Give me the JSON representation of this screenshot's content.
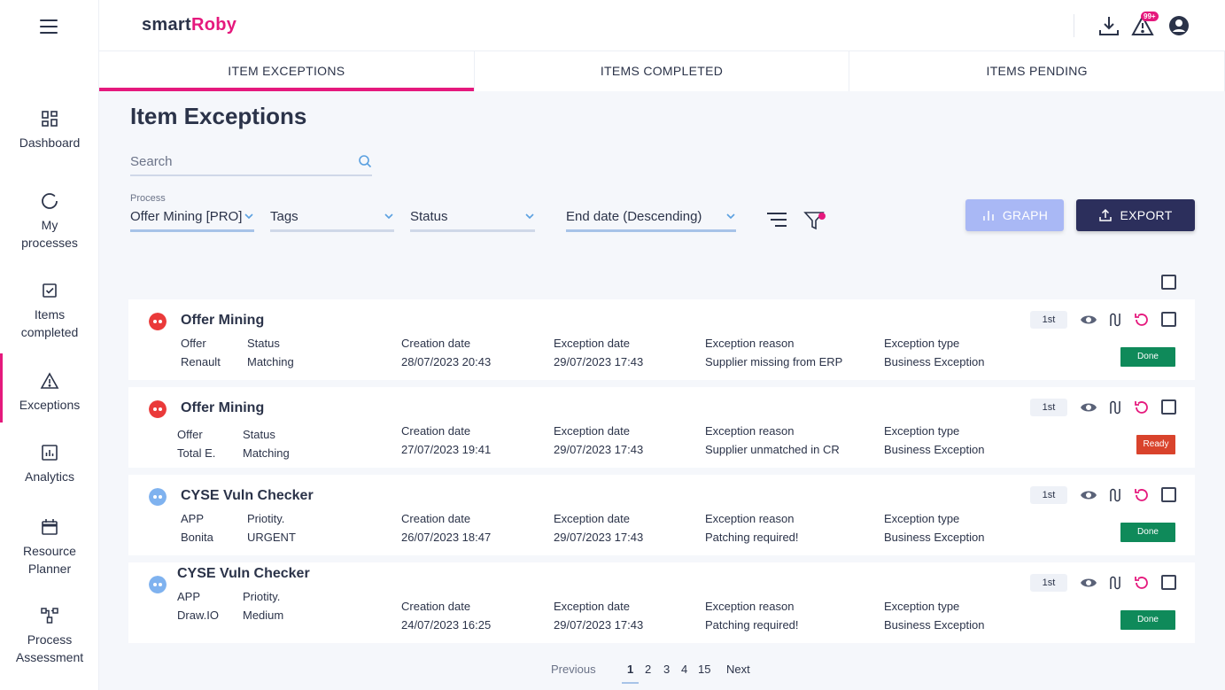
{
  "app": {
    "logo_part1": "smart",
    "logo_part2": "Roby",
    "notification_badge": "99+"
  },
  "sidebar": {
    "items": [
      {
        "label": "Dashboard"
      },
      {
        "label": "My processes"
      },
      {
        "label": "Items completed"
      },
      {
        "label": "Exceptions"
      },
      {
        "label": "Analytics"
      },
      {
        "label": "Resource Planner"
      },
      {
        "label": "Process Assessment"
      }
    ]
  },
  "tabs": [
    {
      "label": "ITEM EXCEPTIONS"
    },
    {
      "label": "ITEMS COMPLETED"
    },
    {
      "label": "ITEMS PENDING"
    }
  ],
  "main": {
    "title": "Item Exceptions",
    "search_placeholder": "Search",
    "filters": {
      "process_label": "Process",
      "process_value": "Offer Mining [PRO]",
      "tags_value": "Tags",
      "status_value": "Status",
      "sort_value": "End date (Descending)"
    },
    "buttons": {
      "graph": "GRAPH",
      "export": "EXPORT"
    }
  },
  "cards": [
    {
      "title": "Offer Mining",
      "field1_h": "Offer",
      "field1_v": "Renault",
      "field2_h": "Status",
      "field2_v": "Matching",
      "creation_h": "Creation date",
      "creation_v": "28/07/2023 20:43",
      "exception_h": "Exception date",
      "exception_v": "29/07/2023 17:43",
      "reason_h": "Exception reason",
      "reason_v": "Supplier missing from ERP",
      "type_h": "Exception type",
      "type_v": "Business Exception",
      "order": "1st",
      "status": "Done"
    },
    {
      "title": "Offer Mining",
      "field1_h": "Offer",
      "field1_v": "Total E.",
      "field2_h": "Status",
      "field2_v": "Matching",
      "creation_h": "Creation date",
      "creation_v": "27/07/2023 19:41",
      "exception_h": "Exception date",
      "exception_v": "29/07/2023 17:43",
      "reason_h": "Exception reason",
      "reason_v": "Supplier unmatched in CR",
      "type_h": "Exception type",
      "type_v": "Business Exception",
      "order": "1st",
      "status": "Ready"
    },
    {
      "title": "CYSE Vuln Checker",
      "field1_h": "APP",
      "field1_v": "Bonita",
      "field2_h": "Priotity.",
      "field2_v": "URGENT",
      "creation_h": "Creation date",
      "creation_v": "26/07/2023 18:47",
      "exception_h": "Exception date",
      "exception_v": "29/07/2023 17:43",
      "reason_h": "Exception reason",
      "reason_v": "Patching required!",
      "type_h": "Exception type",
      "type_v": "Business Exception",
      "order": "1st",
      "status": "Done"
    },
    {
      "title": "CYSE Vuln Checker",
      "field1_h": "APP",
      "field1_v": "Draw.IO",
      "field2_h": "Priotity.",
      "field2_v": "Medium",
      "creation_h": "Creation date",
      "creation_v": "24/07/2023 16:25",
      "exception_h": "Exception date",
      "exception_v": "29/07/2023 17:43",
      "reason_h": "Exception reason",
      "reason_v": "Patching required!",
      "type_h": "Exception type",
      "type_v": "Business Exception",
      "order": "1st",
      "status": "Done"
    }
  ],
  "pagination": {
    "previous": "Previous",
    "pages": [
      "1",
      "2",
      "3",
      "4",
      "15"
    ],
    "next": "Next"
  },
  "colors": {
    "accent": "#e5197d",
    "done": "#0f8a5a",
    "ready": "#d9432c",
    "export": "#2c2f5c",
    "graph": "#a9b8f5"
  }
}
